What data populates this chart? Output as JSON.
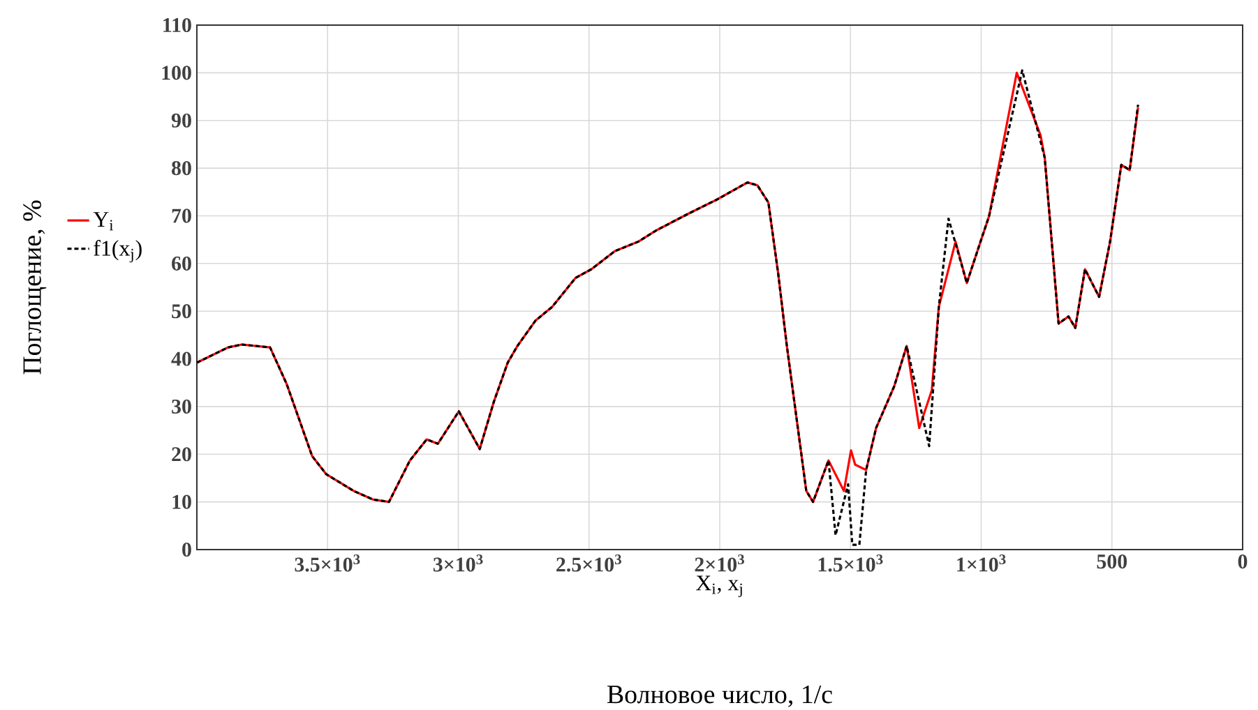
{
  "chart_data": {
    "type": "line",
    "xlabel": "X$_{i}$, x$_{j}$",
    "ylabel": "Поглощение, %",
    "annotations": [
      "Волновое число, 1/с"
    ],
    "xlim": [
      4000,
      0
    ],
    "xticks": [
      {
        "value": 3500,
        "label": "3.5×10$^{3}$"
      },
      {
        "value": 3000,
        "label": "3×10$^{3}$"
      },
      {
        "value": 2500,
        "label": "2.5×10$^{3}$"
      },
      {
        "value": 2000,
        "label": "2×10$^{3}$"
      },
      {
        "value": 1500,
        "label": "1.5×10$^{3}$"
      },
      {
        "value": 1000,
        "label": "1×10$^{3}$"
      },
      500,
      0
    ],
    "ylim": [
      0,
      110
    ],
    "yticks": [
      0,
      10,
      20,
      30,
      40,
      50,
      60,
      70,
      80,
      90,
      100,
      110
    ],
    "grid": true,
    "legend": "left",
    "series": [
      {
        "name": "Y$_{i}$",
        "color": "#ff0000",
        "line_style": "solid",
        "x": [
          4000,
          3881,
          3828,
          3720,
          3657,
          3559,
          3505,
          3400,
          3326,
          3265,
          3185,
          3121,
          3078,
          2998,
          2918,
          2864,
          2811,
          2774,
          2705,
          2641,
          2551,
          2491,
          2401,
          2311,
          2241,
          2118,
          2011,
          1894,
          1856,
          1814,
          1776,
          1744,
          1669,
          1643,
          1584,
          1525,
          1498,
          1482,
          1440,
          1402,
          1333,
          1285,
          1237,
          1189,
          1162,
          1098,
          1055,
          997,
          970,
          864,
          773,
          757,
          704,
          666,
          640,
          603,
          576,
          549,
          507,
          464,
          432,
          400
        ],
        "values": [
          39.2,
          42.4,
          43,
          42.4,
          34.8,
          19.6,
          15.8,
          12.3,
          10.5,
          10,
          18.7,
          23.1,
          22.2,
          29,
          21.1,
          31,
          39.2,
          42.7,
          48,
          50.9,
          57,
          58.8,
          62.6,
          64.6,
          67,
          70.5,
          73.4,
          77,
          76.4,
          72.8,
          57.7,
          43,
          12.3,
          10,
          18.7,
          12.3,
          20.8,
          17.8,
          16.7,
          25.5,
          34.2,
          42.7,
          25.5,
          33.4,
          50.9,
          64.6,
          55.9,
          65.5,
          69.9,
          100,
          86.9,
          82.2,
          47.4,
          48.9,
          46.5,
          58.8,
          55.9,
          53,
          64.6,
          80.7,
          79.6,
          92.7
        ]
      },
      {
        "name": "f1(x$_{j}$)",
        "color": "#000000",
        "line_style": "dashed",
        "x": [
          4000,
          3881,
          3828,
          3720,
          3657,
          3559,
          3505,
          3400,
          3326,
          3265,
          3185,
          3121,
          3078,
          2998,
          2918,
          2864,
          2811,
          2774,
          2705,
          2641,
          2551,
          2491,
          2401,
          2311,
          2241,
          2118,
          2011,
          1894,
          1856,
          1814,
          1776,
          1744,
          1669,
          1643,
          1584,
          1557,
          1509,
          1493,
          1466,
          1440,
          1402,
          1333,
          1285,
          1199,
          1162,
          1125,
          1055,
          997,
          970,
          843,
          757,
          704,
          666,
          640,
          603,
          576,
          549,
          507,
          464,
          432,
          400
        ],
        "values": [
          39.2,
          42.4,
          43,
          42.4,
          34.8,
          19.6,
          15.8,
          12.3,
          10.5,
          10,
          18.7,
          23.1,
          22.2,
          29,
          21.1,
          31,
          39.2,
          42.7,
          48,
          50.9,
          57,
          58.8,
          62.6,
          64.6,
          67,
          70.5,
          73.4,
          77,
          76.4,
          72.8,
          57.7,
          43,
          12.3,
          10,
          18.7,
          3,
          13.7,
          1,
          1,
          16.7,
          25.5,
          34.2,
          42.7,
          21.7,
          50.9,
          69.4,
          55.9,
          65.5,
          69.9,
          100.5,
          82.2,
          47.4,
          48.9,
          46.5,
          58.8,
          55.9,
          53,
          64.6,
          80.7,
          79.6,
          93.3
        ]
      }
    ]
  }
}
